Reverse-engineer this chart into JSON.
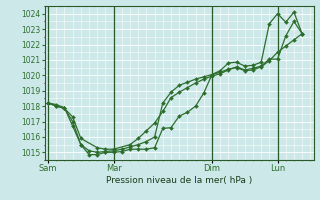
{
  "xlabel": "Pression niveau de la mer( hPa )",
  "background_color": "#cce8e8",
  "grid_color": "#ffffff",
  "line_color": "#2d6e2d",
  "ylim": [
    1014.5,
    1024.5
  ],
  "yticks": [
    1015,
    1016,
    1017,
    1018,
    1019,
    1020,
    1021,
    1022,
    1023,
    1024
  ],
  "day_labels": [
    "Sam",
    "Mar",
    "Dim",
    "Lun"
  ],
  "day_positions": [
    0,
    4,
    10,
    14
  ],
  "xlim": [
    -0.2,
    16.2
  ],
  "series1": [
    [
      0,
      1018.2
    ],
    [
      0.5,
      1018.1
    ],
    [
      1,
      1017.9
    ],
    [
      1.5,
      1016.7
    ],
    [
      2,
      1015.5
    ],
    [
      2.5,
      1014.85
    ],
    [
      3,
      1014.85
    ],
    [
      3.5,
      1015.0
    ],
    [
      4,
      1015.0
    ],
    [
      4.5,
      1015.05
    ],
    [
      5,
      1015.2
    ],
    [
      5.5,
      1015.2
    ],
    [
      6,
      1015.2
    ],
    [
      6.5,
      1015.3
    ],
    [
      7,
      1016.55
    ],
    [
      7.5,
      1016.6
    ],
    [
      8,
      1017.35
    ],
    [
      8.5,
      1017.6
    ],
    [
      9,
      1018.0
    ],
    [
      9.5,
      1018.85
    ],
    [
      10,
      1020.05
    ],
    [
      10.5,
      1020.3
    ],
    [
      11,
      1020.8
    ],
    [
      11.5,
      1020.85
    ],
    [
      12,
      1020.6
    ],
    [
      12.5,
      1020.65
    ],
    [
      13,
      1020.85
    ],
    [
      13.5,
      1023.35
    ],
    [
      14,
      1024.0
    ],
    [
      14.5,
      1023.45
    ],
    [
      15,
      1024.1
    ],
    [
      15.5,
      1022.7
    ]
  ],
  "series2": [
    [
      0,
      1018.2
    ],
    [
      0.5,
      1018.0
    ],
    [
      1,
      1017.85
    ],
    [
      1.5,
      1017.0
    ],
    [
      2,
      1015.5
    ],
    [
      2.5,
      1015.1
    ],
    [
      3,
      1015.0
    ],
    [
      3.5,
      1015.05
    ],
    [
      4,
      1015.1
    ],
    [
      4.5,
      1015.2
    ],
    [
      5,
      1015.35
    ],
    [
      5.5,
      1015.5
    ],
    [
      6,
      1015.7
    ],
    [
      6.5,
      1016.0
    ],
    [
      7,
      1018.2
    ],
    [
      7.5,
      1018.9
    ],
    [
      8,
      1019.35
    ],
    [
      8.5,
      1019.55
    ],
    [
      9,
      1019.75
    ],
    [
      9.5,
      1019.9
    ],
    [
      10,
      1020.05
    ],
    [
      10.5,
      1020.2
    ],
    [
      11,
      1020.4
    ],
    [
      11.5,
      1020.5
    ],
    [
      12,
      1020.3
    ],
    [
      12.5,
      1020.35
    ],
    [
      13,
      1020.55
    ],
    [
      13.5,
      1020.95
    ],
    [
      14,
      1021.5
    ],
    [
      14.5,
      1021.9
    ],
    [
      15,
      1022.3
    ],
    [
      15.5,
      1022.7
    ]
  ],
  "series3": [
    [
      0,
      1018.2
    ],
    [
      0.5,
      1018.0
    ],
    [
      1,
      1017.85
    ],
    [
      1.5,
      1017.3
    ],
    [
      2,
      1015.9
    ],
    [
      3,
      1015.3
    ],
    [
      3.5,
      1015.2
    ],
    [
      4,
      1015.2
    ],
    [
      5,
      1015.5
    ],
    [
      5.5,
      1015.9
    ],
    [
      6,
      1016.4
    ],
    [
      6.5,
      1016.9
    ],
    [
      7,
      1017.65
    ],
    [
      7.5,
      1018.55
    ],
    [
      8,
      1018.9
    ],
    [
      8.5,
      1019.2
    ],
    [
      9,
      1019.5
    ],
    [
      9.5,
      1019.75
    ],
    [
      10,
      1019.95
    ],
    [
      10.5,
      1020.1
    ],
    [
      11,
      1020.35
    ],
    [
      11.5,
      1020.55
    ],
    [
      12,
      1020.35
    ],
    [
      12.5,
      1020.45
    ],
    [
      13,
      1020.6
    ],
    [
      13.5,
      1021.05
    ],
    [
      14,
      1021.05
    ],
    [
      14.5,
      1022.55
    ],
    [
      15,
      1023.5
    ],
    [
      15.5,
      1022.7
    ]
  ]
}
